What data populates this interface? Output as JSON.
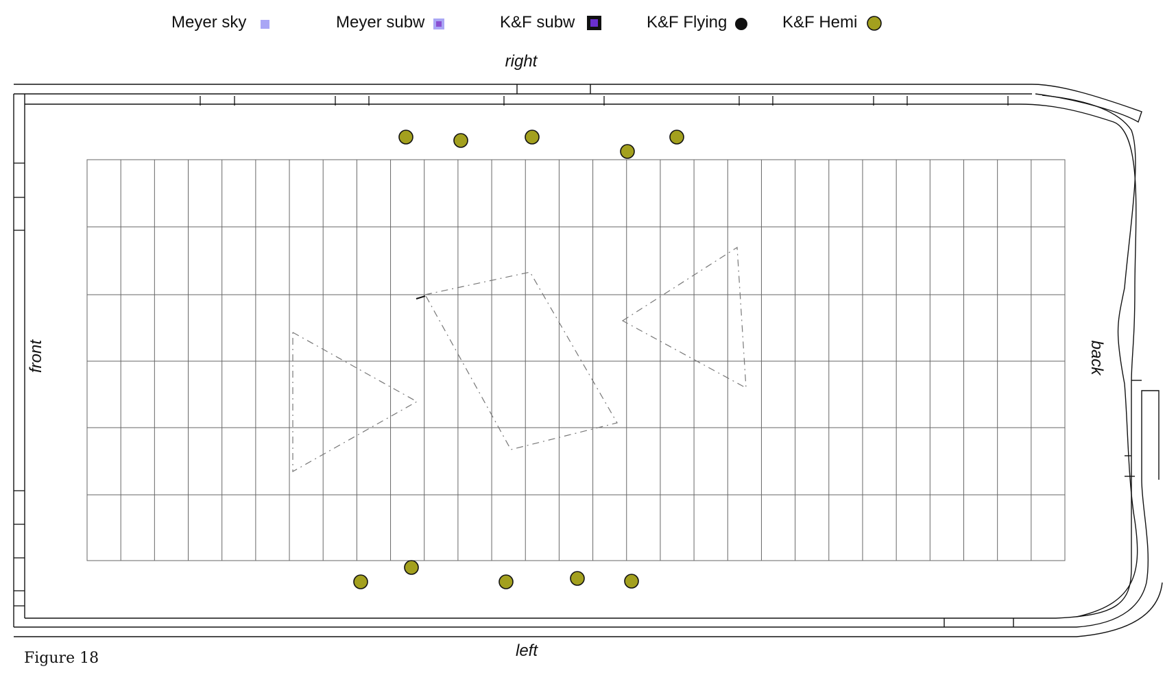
{
  "legend": [
    {
      "label": "Meyer sky",
      "symbol": "square",
      "fill": "#a9a6f5",
      "stroke": "none"
    },
    {
      "label": "Meyer subw",
      "symbol": "square-inset",
      "fill": "#a9a6f5",
      "inner": "#8a4fd1",
      "stroke": "none"
    },
    {
      "label": "K&F subw",
      "symbol": "square-inset",
      "fill": "#111111",
      "inner": "#6a2fcf",
      "stroke": "#111111"
    },
    {
      "label": "K&F Flying",
      "symbol": "circle",
      "fill": "#111111",
      "stroke": "#111111"
    },
    {
      "label": "K&F Hemi",
      "symbol": "circle",
      "fill": "#a3a01e",
      "stroke": "#111111"
    }
  ],
  "sides": {
    "right": "right",
    "left": "left",
    "front": "front",
    "back": "back"
  },
  "caption": "Figure 18",
  "colors": {
    "hemi_fill": "#a3a01e",
    "grid": "#666666",
    "walls": "#111111"
  }
}
